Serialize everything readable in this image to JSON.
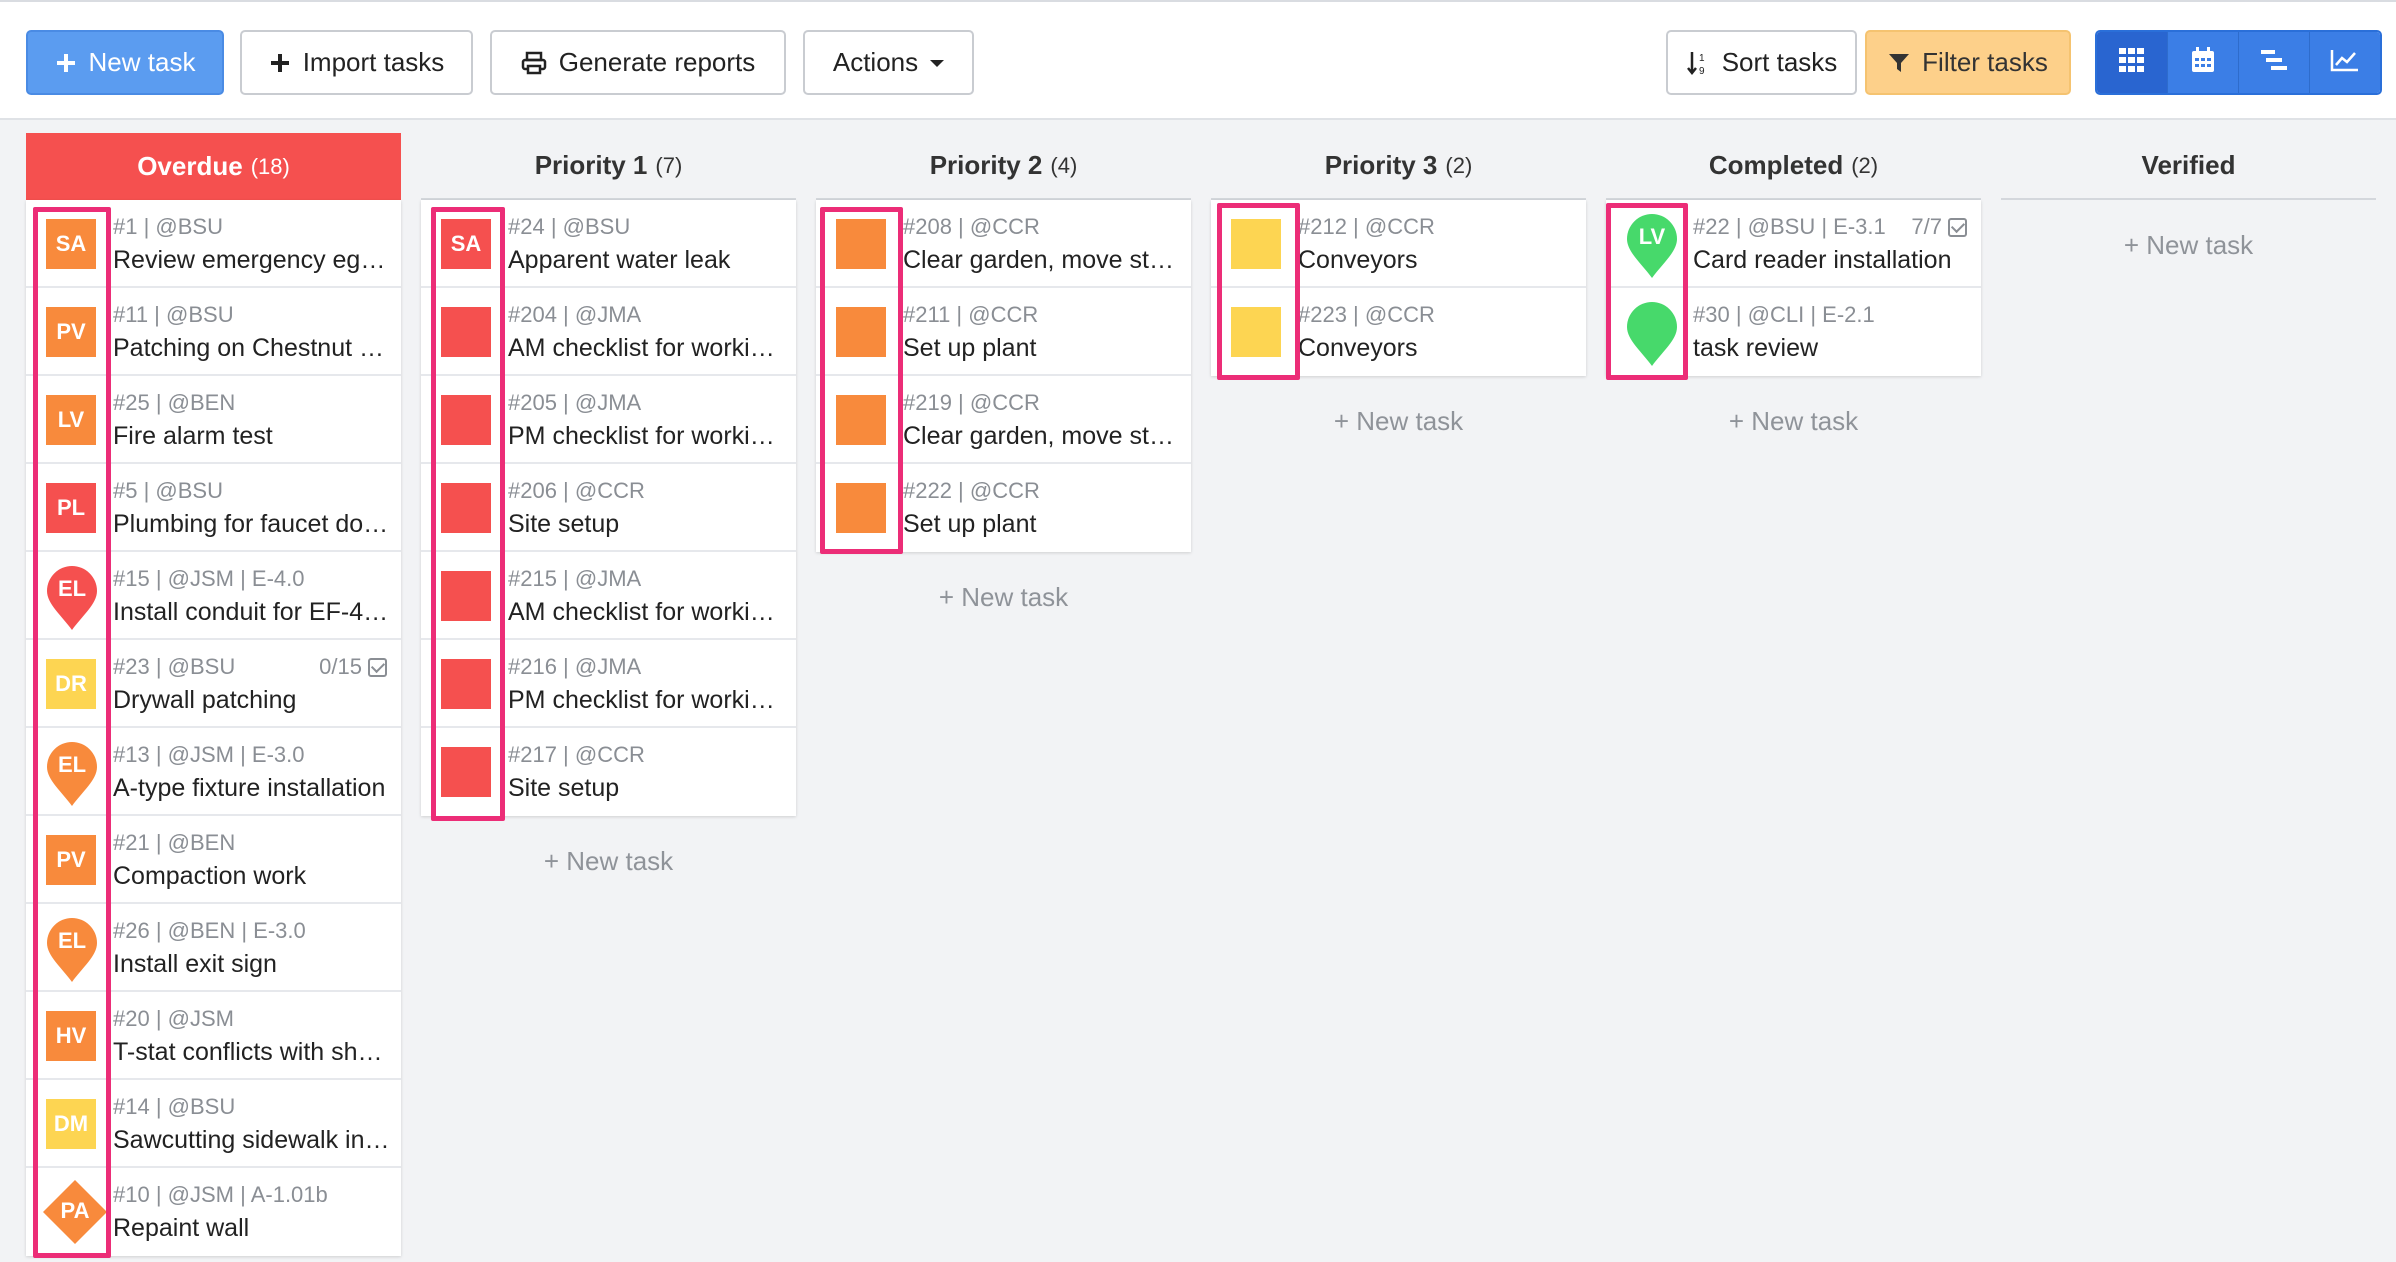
{
  "toolbar": {
    "new_task": "New task",
    "import_tasks": "Import tasks",
    "generate_reports": "Generate reports",
    "actions": "Actions",
    "sort_tasks": "Sort tasks",
    "filter_tasks": "Filter tasks"
  },
  "new_task_link": "+ New task",
  "colors": {
    "red": "#f5504f",
    "orange": "#f88a3c",
    "yellow": "#fdd552",
    "green": "#47d96b",
    "highlight": "#ec2d77",
    "primary": "#5b9cf0"
  },
  "columns": [
    {
      "title": "Overdue",
      "count": "(18)",
      "cards": [
        {
          "meta": "#1 | @BSU",
          "title": "Review emergency egre…",
          "marker": {
            "shape": "square",
            "label": "SA",
            "color": "orange"
          }
        },
        {
          "meta": "#11 | @BSU",
          "title": "Patching on Chestnut St…",
          "marker": {
            "shape": "square",
            "label": "PV",
            "color": "orange"
          }
        },
        {
          "meta": "#25 | @BEN",
          "title": "Fire alarm test",
          "marker": {
            "shape": "square",
            "label": "LV",
            "color": "orange"
          }
        },
        {
          "meta": "#5 | @BSU",
          "title": "Plumbing for faucet doe…",
          "marker": {
            "shape": "square",
            "label": "PL",
            "color": "red"
          }
        },
        {
          "meta": "#15 | @JSM | E-4.0",
          "title": "Install conduit for EF-4 f…",
          "marker": {
            "shape": "pin",
            "label": "EL",
            "color": "red"
          }
        },
        {
          "meta": "#23 | @BSU",
          "title": "Drywall patching",
          "progress": "0/15",
          "marker": {
            "shape": "square",
            "label": "DR",
            "color": "yellow"
          }
        },
        {
          "meta": "#13 | @JSM | E-3.0",
          "title": "A-type fixture installation",
          "marker": {
            "shape": "pin",
            "label": "EL",
            "color": "orange"
          }
        },
        {
          "meta": "#21 | @BEN",
          "title": "Compaction work",
          "marker": {
            "shape": "square",
            "label": "PV",
            "color": "orange"
          }
        },
        {
          "meta": "#26 | @BEN | E-3.0",
          "title": "Install exit sign",
          "marker": {
            "shape": "pin",
            "label": "EL",
            "color": "orange"
          }
        },
        {
          "meta": "#20 | @JSM",
          "title": "T-stat conflicts with shel…",
          "marker": {
            "shape": "square",
            "label": "HV",
            "color": "orange"
          }
        },
        {
          "meta": "#14 | @BSU",
          "title": "Sawcutting sidewalk in …",
          "marker": {
            "shape": "square",
            "label": "DM",
            "color": "yellow"
          }
        },
        {
          "meta": "#10 | @JSM | A-1.01b",
          "title": "Repaint wall",
          "marker": {
            "shape": "diamond",
            "label": "PA",
            "color": "orange"
          }
        }
      ]
    },
    {
      "title": "Priority 1",
      "count": "(7)",
      "cards": [
        {
          "meta": "#24 | @BSU",
          "title": "Apparent water leak",
          "marker": {
            "shape": "square",
            "label": "SA",
            "color": "red"
          }
        },
        {
          "meta": "#204 | @JMA",
          "title": "AM checklist for workin…",
          "marker": {
            "shape": "square",
            "label": "",
            "color": "red"
          }
        },
        {
          "meta": "#205 | @JMA",
          "title": "PM checklist for workin…",
          "marker": {
            "shape": "square",
            "label": "",
            "color": "red"
          }
        },
        {
          "meta": "#206 | @CCR",
          "title": "Site setup",
          "marker": {
            "shape": "square",
            "label": "",
            "color": "red"
          }
        },
        {
          "meta": "#215 | @JMA",
          "title": "AM checklist for workin…",
          "marker": {
            "shape": "square",
            "label": "",
            "color": "red"
          }
        },
        {
          "meta": "#216 | @JMA",
          "title": "PM checklist for workin…",
          "marker": {
            "shape": "square",
            "label": "",
            "color": "red"
          }
        },
        {
          "meta": "#217 | @CCR",
          "title": "Site setup",
          "marker": {
            "shape": "square",
            "label": "",
            "color": "red"
          }
        }
      ]
    },
    {
      "title": "Priority 2",
      "count": "(4)",
      "cards": [
        {
          "meta": "#208 | @CCR",
          "title": "Clear garden, move ston…",
          "marker": {
            "shape": "square",
            "label": "",
            "color": "orange"
          }
        },
        {
          "meta": "#211 | @CCR",
          "title": "Set up plant",
          "marker": {
            "shape": "square",
            "label": "",
            "color": "orange"
          }
        },
        {
          "meta": "#219 | @CCR",
          "title": "Clear garden, move ston…",
          "marker": {
            "shape": "square",
            "label": "",
            "color": "orange"
          }
        },
        {
          "meta": "#222 | @CCR",
          "title": "Set up plant",
          "marker": {
            "shape": "square",
            "label": "",
            "color": "orange"
          }
        }
      ]
    },
    {
      "title": "Priority 3",
      "count": "(2)",
      "cards": [
        {
          "meta": "#212 | @CCR",
          "title": "Conveyors",
          "marker": {
            "shape": "square",
            "label": "",
            "color": "yellow"
          }
        },
        {
          "meta": "#223 | @CCR",
          "title": "Conveyors",
          "marker": {
            "shape": "square",
            "label": "",
            "color": "yellow"
          }
        }
      ]
    },
    {
      "title": "Completed",
      "count": "(2)",
      "cards": [
        {
          "meta": "#22 | @BSU | E-3.1",
          "title": "Card reader installation",
          "progress": "7/7",
          "marker": {
            "shape": "pin",
            "label": "LV",
            "color": "green"
          }
        },
        {
          "meta": "#30 | @CLI | E-2.1",
          "title": "task review",
          "marker": {
            "shape": "pin",
            "label": "",
            "color": "green"
          }
        }
      ]
    },
    {
      "title": "Verified",
      "count": "",
      "cards": []
    }
  ]
}
